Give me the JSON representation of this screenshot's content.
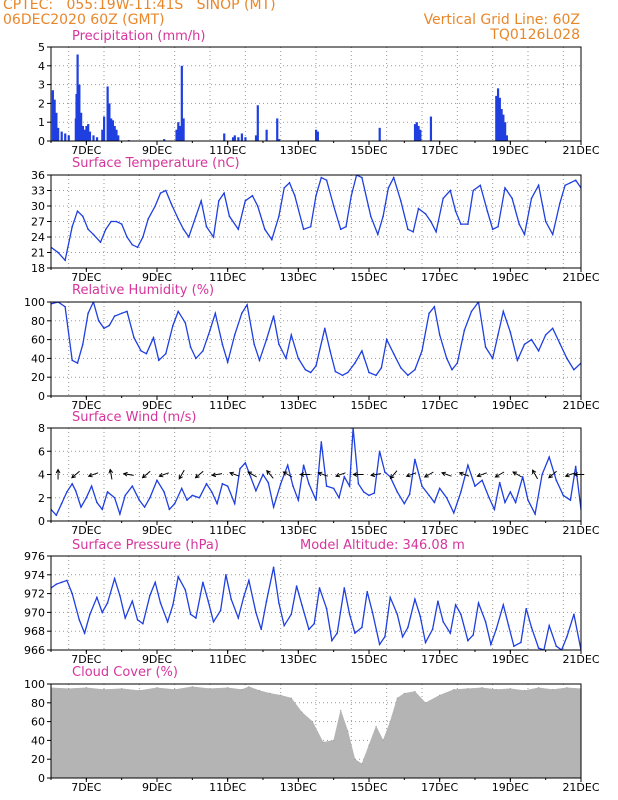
{
  "header": {
    "left_line1": "CPTEC:   055:19W-11:41S   SINOP (MT)",
    "left_line2": "06DEC2020 60Z (GMT)",
    "right_line1": "Vertical Grid Line: 60Z",
    "right_line2": "TQ0126L028"
  },
  "colors": {
    "header": "#e8872a",
    "title": "#d6359c",
    "line": "#1f3fe0",
    "cloud": "#b4b4b4",
    "axis": "#000000",
    "grid": "#9a9a9a"
  },
  "date_ticks": [
    "7DEC",
    "9DEC",
    "11DEC",
    "13DEC",
    "15DEC",
    "17DEC",
    "19DEC",
    "21DEC"
  ],
  "chart_data": [
    {
      "type": "bar",
      "title": "Precipitation (mm/h)",
      "ylim": [
        0,
        5
      ],
      "yticks": [
        "0",
        "1",
        "2",
        "3",
        "4",
        "5"
      ],
      "x": [
        6.05,
        6.1,
        6.15,
        6.2,
        6.3,
        6.4,
        6.5,
        6.7,
        6.72,
        6.75,
        6.8,
        6.85,
        6.9,
        6.95,
        7.0,
        7.05,
        7.1,
        7.2,
        7.3,
        7.45,
        7.5,
        7.6,
        7.65,
        7.7,
        7.75,
        7.8,
        7.85,
        7.9,
        8.2,
        9.2,
        9.55,
        9.6,
        9.65,
        9.7,
        9.75,
        10.9,
        11.15,
        11.2,
        11.3,
        11.4,
        11.5,
        11.8,
        11.85,
        12.1,
        12.4,
        12.45,
        13.5,
        13.55,
        15.3,
        16.3,
        16.35,
        16.4,
        16.45,
        16.75,
        18.6,
        18.65,
        18.7,
        18.75,
        18.8,
        18.85,
        18.9
      ],
      "values": [
        2.7,
        2.2,
        1.5,
        0.7,
        0.5,
        0.4,
        0.3,
        1.2,
        2.5,
        4.6,
        3.0,
        1.5,
        0.8,
        0.6,
        0.8,
        0.9,
        0.5,
        0.3,
        0.2,
        0.6,
        1.3,
        2.9,
        2.0,
        1.2,
        1.1,
        0.8,
        0.6,
        0.3,
        0.05,
        0.1,
        0.6,
        1.0,
        0.8,
        4.0,
        1.2,
        0.4,
        0.2,
        0.3,
        0.2,
        0.4,
        0.2,
        0.3,
        1.9,
        0.6,
        1.2,
        0.1,
        0.6,
        0.5,
        0.7,
        0.9,
        1.0,
        0.8,
        0.6,
        1.3,
        2.4,
        2.8,
        2.3,
        1.7,
        1.4,
        1.0,
        0.3
      ]
    },
    {
      "type": "line",
      "title": "Surface Temperature (nC)",
      "ylim": [
        18,
        36
      ],
      "yticks": [
        "18",
        "21",
        "24",
        "27",
        "30",
        "33",
        "36"
      ],
      "x": [
        6.0,
        6.2,
        6.4,
        6.6,
        6.75,
        6.9,
        7.05,
        7.2,
        7.4,
        7.55,
        7.7,
        7.85,
        8.0,
        8.15,
        8.3,
        8.45,
        8.6,
        8.75,
        8.95,
        9.1,
        9.25,
        9.4,
        9.6,
        9.75,
        9.9,
        10.1,
        10.25,
        10.4,
        10.6,
        10.75,
        10.9,
        11.05,
        11.3,
        11.5,
        11.7,
        11.85,
        12.05,
        12.25,
        12.45,
        12.6,
        12.75,
        12.9,
        13.15,
        13.35,
        13.5,
        13.65,
        13.8,
        14.0,
        14.2,
        14.35,
        14.5,
        14.65,
        14.8,
        15.05,
        15.25,
        15.4,
        15.55,
        15.7,
        15.9,
        16.1,
        16.25,
        16.4,
        16.6,
        16.75,
        16.9,
        17.1,
        17.3,
        17.45,
        17.6,
        17.8,
        17.95,
        18.15,
        18.35,
        18.5,
        18.65,
        18.85,
        19.05,
        19.25,
        19.4,
        19.6,
        19.8,
        20.0,
        20.2,
        20.4,
        20.55,
        20.7,
        20.85,
        21.0
      ],
      "values": [
        22,
        21,
        19.5,
        26,
        29,
        28,
        25.5,
        24.5,
        23,
        25.5,
        27,
        27,
        26.5,
        24,
        22.5,
        22,
        24,
        27.5,
        30,
        32.5,
        33,
        30.5,
        27.5,
        25.5,
        24,
        28,
        31,
        26,
        24,
        31,
        32.5,
        28,
        25.5,
        31,
        32,
        30,
        25.5,
        23.5,
        28,
        33.5,
        34.5,
        32,
        25.5,
        26,
        32,
        35.5,
        35,
        30,
        25.5,
        26,
        32,
        36,
        35.5,
        28,
        24.5,
        28,
        33.5,
        35.5,
        31,
        25.5,
        25,
        29.5,
        28.5,
        27,
        25,
        31.5,
        33,
        29,
        26.5,
        26.5,
        33,
        34,
        29,
        25.5,
        26,
        33.5,
        31.5,
        26.5,
        24.5,
        31.5,
        34,
        27,
        24.5,
        30.5,
        34,
        34.5,
        35,
        33.5
      ]
    },
    {
      "type": "line",
      "title": "Relative Humidity (%)",
      "ylim": [
        0,
        100
      ],
      "yticks": [
        "0",
        "20",
        "40",
        "60",
        "80",
        "100"
      ],
      "x": [
        6.0,
        6.2,
        6.4,
        6.6,
        6.75,
        6.9,
        7.05,
        7.2,
        7.35,
        7.5,
        7.65,
        7.8,
        8.0,
        8.15,
        8.35,
        8.55,
        8.7,
        8.9,
        9.05,
        9.25,
        9.45,
        9.6,
        9.8,
        9.95,
        10.1,
        10.3,
        10.5,
        10.65,
        10.85,
        11.0,
        11.2,
        11.4,
        11.55,
        11.75,
        11.9,
        12.1,
        12.3,
        12.45,
        12.65,
        12.8,
        13.0,
        13.2,
        13.35,
        13.5,
        13.75,
        13.9,
        14.05,
        14.25,
        14.4,
        14.6,
        14.8,
        15.0,
        15.2,
        15.35,
        15.5,
        15.7,
        15.9,
        16.1,
        16.3,
        16.5,
        16.7,
        16.85,
        17.0,
        17.2,
        17.35,
        17.5,
        17.7,
        17.9,
        18.1,
        18.3,
        18.5,
        18.65,
        18.8,
        19.0,
        19.2,
        19.4,
        19.6,
        19.8,
        20.0,
        20.2,
        20.4,
        20.6,
        20.8,
        21.0
      ],
      "values": [
        98,
        100,
        95,
        38,
        35,
        55,
        88,
        100,
        80,
        72,
        75,
        85,
        88,
        90,
        62,
        48,
        45,
        62,
        38,
        45,
        75,
        90,
        78,
        52,
        40,
        48,
        70,
        88,
        55,
        36,
        65,
        88,
        97,
        55,
        38,
        60,
        85,
        55,
        40,
        65,
        40,
        28,
        25,
        32,
        72,
        48,
        26,
        22,
        25,
        35,
        48,
        25,
        22,
        30,
        60,
        45,
        30,
        22,
        28,
        48,
        88,
        95,
        65,
        40,
        28,
        35,
        70,
        90,
        100,
        52,
        40,
        65,
        90,
        68,
        38,
        55,
        60,
        48,
        65,
        72,
        56,
        40,
        28,
        35
      ]
    },
    {
      "type": "line",
      "title": "Surface Wind (m/s)",
      "ylim": [
        0,
        8
      ],
      "yticks": [
        "0",
        "2",
        "4",
        "6",
        "8"
      ],
      "x": [
        6.0,
        6.15,
        6.3,
        6.45,
        6.6,
        6.7,
        6.85,
        7.0,
        7.15,
        7.3,
        7.45,
        7.6,
        7.8,
        7.95,
        8.1,
        8.3,
        8.5,
        8.65,
        8.8,
        9.0,
        9.2,
        9.35,
        9.5,
        9.7,
        9.85,
        10.0,
        10.2,
        10.4,
        10.55,
        10.7,
        10.85,
        11.0,
        11.2,
        11.35,
        11.5,
        11.65,
        11.8,
        12.0,
        12.15,
        12.3,
        12.5,
        12.7,
        12.85,
        13.0,
        13.15,
        13.3,
        13.5,
        13.65,
        13.8,
        14.0,
        14.15,
        14.3,
        14.45,
        14.55,
        14.7,
        14.85,
        15.0,
        15.15,
        15.3,
        15.45,
        15.6,
        15.8,
        16.0,
        16.15,
        16.3,
        16.5,
        16.7,
        16.85,
        17.0,
        17.2,
        17.4,
        17.6,
        17.8,
        18.0,
        18.2,
        18.4,
        18.55,
        18.7,
        18.85,
        19.0,
        19.15,
        19.35,
        19.5,
        19.7,
        19.9,
        20.1,
        20.3,
        20.5,
        20.7,
        20.85,
        21.0
      ],
      "values": [
        1.0,
        0.5,
        1.5,
        2.5,
        3.2,
        2.6,
        1.2,
        2.0,
        3.0,
        1.6,
        1.0,
        2.5,
        2.0,
        0.6,
        2.2,
        3.0,
        1.8,
        1.2,
        2.0,
        3.5,
        2.5,
        1.0,
        1.5,
        2.8,
        1.8,
        2.2,
        2.0,
        3.2,
        2.5,
        1.5,
        3.2,
        3.0,
        1.5,
        4.5,
        5.0,
        3.8,
        2.6,
        4.0,
        3.3,
        1.2,
        3.2,
        4.8,
        3.0,
        1.8,
        4.8,
        3.2,
        1.8,
        6.8,
        3.0,
        2.8,
        2.0,
        3.8,
        3.0,
        8.0,
        3.2,
        2.5,
        2.2,
        2.4,
        6.0,
        4.2,
        3.8,
        2.5,
        1.5,
        2.3,
        5.3,
        3.0,
        2.2,
        1.6,
        2.8,
        2.0,
        0.7,
        2.5,
        4.8,
        3.0,
        3.5,
        2.0,
        1.0,
        3.3,
        1.6,
        2.5,
        1.6,
        3.8,
        1.8,
        0.6,
        4.0,
        5.5,
        3.5,
        2.2,
        1.8,
        4.7,
        1.0
      ],
      "arrow_x": [
        6.2,
        6.7,
        7.2,
        7.7,
        8.2,
        8.7,
        9.2,
        9.7,
        10.2,
        10.7,
        11.2,
        11.7,
        12.2,
        12.7,
        13.2,
        13.7,
        14.2,
        14.7,
        15.2,
        15.7,
        16.2,
        16.7,
        17.2,
        17.7,
        18.2,
        18.7,
        19.2,
        19.7,
        20.2,
        20.7,
        20.95
      ],
      "arrow_dir": [
        90,
        220,
        200,
        100,
        170,
        220,
        200,
        240,
        220,
        190,
        160,
        150,
        130,
        150,
        180,
        160,
        200,
        180,
        190,
        230,
        200,
        210,
        160,
        160,
        200,
        210,
        150,
        120,
        220,
        200,
        180
      ]
    },
    {
      "type": "line",
      "title": "Surface Pressure (hPa)",
      "annotation": "Model Altitude: 346.08 m",
      "ylim": [
        966,
        976
      ],
      "yticks": [
        "966",
        "968",
        "970",
        "972",
        "974",
        "976"
      ],
      "x": [
        6.0,
        6.15,
        6.3,
        6.45,
        6.6,
        6.8,
        6.95,
        7.1,
        7.3,
        7.45,
        7.6,
        7.8,
        7.95,
        8.1,
        8.3,
        8.45,
        8.6,
        8.8,
        8.95,
        9.1,
        9.3,
        9.45,
        9.6,
        9.8,
        9.95,
        10.1,
        10.3,
        10.45,
        10.6,
        10.8,
        10.95,
        11.1,
        11.3,
        11.45,
        11.6,
        11.8,
        11.95,
        12.1,
        12.3,
        12.45,
        12.6,
        12.8,
        12.95,
        13.1,
        13.3,
        13.45,
        13.6,
        13.8,
        13.95,
        14.1,
        14.3,
        14.45,
        14.6,
        14.8,
        14.95,
        15.1,
        15.3,
        15.45,
        15.6,
        15.8,
        15.95,
        16.1,
        16.3,
        16.45,
        16.6,
        16.8,
        16.95,
        17.1,
        17.3,
        17.45,
        17.6,
        17.8,
        17.95,
        18.1,
        18.3,
        18.45,
        18.6,
        18.8,
        18.95,
        19.1,
        19.3,
        19.45,
        19.6,
        19.8,
        19.95,
        20.1,
        20.3,
        20.45,
        20.6,
        20.8,
        21.0
      ],
      "values": [
        972.6,
        973.0,
        973.2,
        973.4,
        972.0,
        969.2,
        967.8,
        969.8,
        971.6,
        970.0,
        971.0,
        973.6,
        971.8,
        969.4,
        971.2,
        969.2,
        968.8,
        971.8,
        973.2,
        971.0,
        969.0,
        970.8,
        973.8,
        972.4,
        969.8,
        969.4,
        973.2,
        971.2,
        969.0,
        970.2,
        974.0,
        971.4,
        969.4,
        971.6,
        973.4,
        970.0,
        968.2,
        971.2,
        974.8,
        971.0,
        968.6,
        969.8,
        972.8,
        970.8,
        968.2,
        968.8,
        972.6,
        970.4,
        967.0,
        967.8,
        972.6,
        969.8,
        967.8,
        968.4,
        972.2,
        970.0,
        966.6,
        967.4,
        971.6,
        969.8,
        967.4,
        968.4,
        971.4,
        969.6,
        966.8,
        968.2,
        971.2,
        969.0,
        967.8,
        970.8,
        969.8,
        967.0,
        967.6,
        971.0,
        969.0,
        966.6,
        968.2,
        970.8,
        968.6,
        966.4,
        966.8,
        970.4,
        968.4,
        966.2,
        966.0,
        968.6,
        966.4,
        966.0,
        967.4,
        969.8,
        966.0
      ]
    },
    {
      "type": "area",
      "title": "Cloud Cover (%)",
      "ylim": [
        0,
        100
      ],
      "yticks": [
        "0",
        "20",
        "40",
        "60",
        "80",
        "100"
      ],
      "x": [
        6.0,
        6.5,
        7.0,
        7.5,
        8.0,
        8.5,
        9.0,
        9.5,
        10.0,
        10.5,
        11.0,
        11.4,
        11.6,
        11.9,
        12.2,
        12.5,
        12.8,
        13.1,
        13.4,
        13.7,
        14.0,
        14.2,
        14.4,
        14.6,
        14.8,
        15.0,
        15.2,
        15.4,
        15.6,
        15.8,
        16.0,
        16.3,
        16.6,
        17.0,
        17.4,
        17.8,
        18.2,
        18.6,
        19.0,
        19.4,
        19.8,
        20.2,
        20.6,
        21.0
      ],
      "values": [
        96,
        95,
        96,
        94,
        95,
        93,
        96,
        94,
        97,
        95,
        96,
        94,
        97,
        93,
        90,
        88,
        85,
        70,
        60,
        38,
        40,
        72,
        50,
        20,
        15,
        35,
        55,
        40,
        60,
        85,
        90,
        92,
        80,
        88,
        94,
        95,
        96,
        94,
        95,
        93,
        96,
        94,
        96,
        95
      ]
    }
  ]
}
